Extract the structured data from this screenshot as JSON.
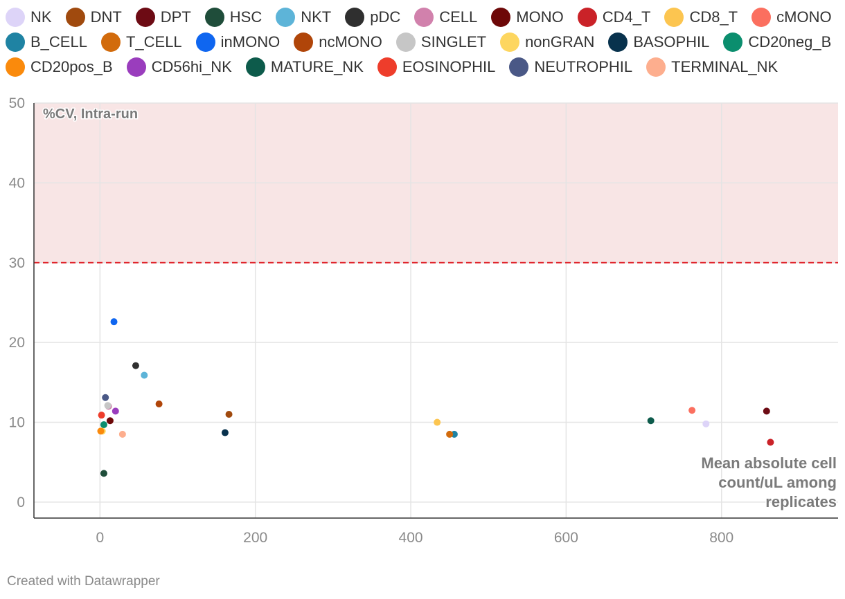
{
  "chart_data": {
    "type": "scatter",
    "x_axis": {
      "range": [
        -85,
        950
      ],
      "ticks": [
        0,
        200,
        400,
        600,
        800
      ],
      "tick_labels": [
        "0",
        "200",
        "400",
        "600",
        "800"
      ]
    },
    "y_axis": {
      "range": [
        -2,
        50
      ],
      "ticks": [
        0,
        10,
        20,
        30,
        40,
        50
      ],
      "tick_labels": [
        "0",
        "10",
        "20",
        "30",
        "40",
        "50"
      ]
    },
    "grid": true,
    "threshold": {
      "value": 30,
      "shade_above": true,
      "line_color": "#e0262d",
      "shade_color": "#f8e5e5"
    },
    "ylabel": "%CV, Intra-run",
    "xlabel_lines": [
      "Mean absolute cell",
      "count/uL among",
      "replicates"
    ],
    "legend_position": "top",
    "series": [
      {
        "name": "NK",
        "color": "#ddd4f8",
        "points": [
          [
            780,
            9.8
          ]
        ]
      },
      {
        "name": "DNT",
        "color": "#a04a0e",
        "points": [
          [
            166,
            11.0
          ]
        ]
      },
      {
        "name": "DPT",
        "color": "#6d0b14",
        "points": [
          [
            858,
            11.4
          ]
        ]
      },
      {
        "name": "HSC",
        "color": "#1f4d3a",
        "points": [
          [
            5,
            3.6
          ]
        ]
      },
      {
        "name": "NKT",
        "color": "#5db4d8",
        "points": [
          [
            57,
            15.9
          ]
        ]
      },
      {
        "name": "pDC",
        "color": "#2f2f2f",
        "points": [
          [
            46,
            17.1
          ]
        ]
      },
      {
        "name": "CELL",
        "color": "#d181ac",
        "points": [
          [
            11,
            12.0
          ]
        ]
      },
      {
        "name": "MONO",
        "color": "#6d0808",
        "points": [
          [
            13,
            10.2
          ]
        ]
      },
      {
        "name": "CD4_T",
        "color": "#ca2228",
        "points": [
          [
            863,
            7.5
          ]
        ]
      },
      {
        "name": "CD8_T",
        "color": "#fcc550",
        "points": [
          [
            434,
            10.0
          ]
        ]
      },
      {
        "name": "cMONO",
        "color": "#fb6f5f",
        "points": [
          [
            762,
            11.5
          ]
        ]
      },
      {
        "name": "B_CELL",
        "color": "#1f83a3",
        "points": [
          [
            456,
            8.5
          ]
        ]
      },
      {
        "name": "T_CELL",
        "color": "#d26b0c",
        "points": [
          [
            450,
            8.5
          ]
        ]
      },
      {
        "name": "inMONO",
        "color": "#0f66f0",
        "points": [
          [
            18,
            22.6
          ]
        ]
      },
      {
        "name": "ncMONO",
        "color": "#b04509",
        "points": [
          [
            76,
            12.3
          ]
        ]
      },
      {
        "name": "SINGLET",
        "color": "#c6c6c6",
        "points": [
          [
            10,
            12.1
          ]
        ]
      },
      {
        "name": "nonGRAN",
        "color": "#fdd65f",
        "points": [
          [
            3,
            8.9
          ]
        ]
      },
      {
        "name": "BASOPHIL",
        "color": "#08324d",
        "points": [
          [
            161,
            8.7
          ]
        ]
      },
      {
        "name": "CD20neg_B",
        "color": "#0b8e6e",
        "points": [
          [
            5,
            9.7
          ]
        ]
      },
      {
        "name": "CD20pos_B",
        "color": "#fa8a0c",
        "points": [
          [
            1,
            8.9
          ]
        ]
      },
      {
        "name": "CD56hi_NK",
        "color": "#9a3dbd",
        "points": [
          [
            20,
            11.4
          ]
        ]
      },
      {
        "name": "MATURE_NK",
        "color": "#0d5b4b",
        "points": [
          [
            709,
            10.2
          ]
        ]
      },
      {
        "name": "EOSINOPHIL",
        "color": "#ee3d2b",
        "points": [
          [
            2,
            10.9
          ]
        ]
      },
      {
        "name": "NEUTROPHIL",
        "color": "#4a5886",
        "points": [
          [
            7,
            13.1
          ]
        ]
      },
      {
        "name": "TERMINAL_NK",
        "color": "#fdae8e",
        "points": [
          [
            29,
            8.5
          ]
        ]
      }
    ]
  },
  "footer": {
    "credit": "Created with Datawrapper"
  }
}
